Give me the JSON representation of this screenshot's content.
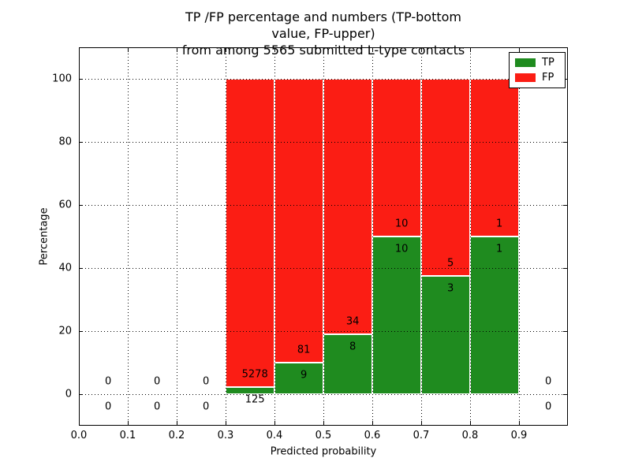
{
  "chart_data": {
    "type": "bar",
    "stacked": true,
    "title": "TP /FP percentage and numbers (TP-bottom value, FP-upper)\nfrom among 5565 submitted L-type contacts",
    "xlabel": "Predicted probability",
    "ylabel": "Percentage",
    "total_submitted_contacts": 5565,
    "x_range": [
      0.0,
      1.0
    ],
    "y_range": [
      -10,
      110
    ],
    "x_ticks": [
      0.0,
      0.1,
      0.2,
      0.3,
      0.4,
      0.5,
      0.6,
      0.7,
      0.8,
      0.9
    ],
    "x_tick_labels": [
      "0.0",
      "0.1",
      "0.2",
      "0.3",
      "0.4",
      "0.5",
      "0.6",
      "0.7",
      "0.8",
      "0.9"
    ],
    "y_ticks": [
      0,
      20,
      40,
      60,
      80,
      100
    ],
    "y_tick_labels": [
      "0",
      "20",
      "40",
      "60",
      "80",
      "100"
    ],
    "grid": {
      "enabled": true,
      "style": "dotted",
      "color": "#000000"
    },
    "colors": {
      "tp": "#1f8b1f",
      "fp": "#fb1d14"
    },
    "legend": {
      "position": "upper right",
      "entries": [
        {
          "label": "TP",
          "color": "#1f8b1f"
        },
        {
          "label": "FP",
          "color": "#fb1d14"
        }
      ]
    },
    "bins": [
      {
        "x0": 0.0,
        "x1": 0.1,
        "tp": 0,
        "fp": 0,
        "tp_pct": 0,
        "fp_pct": 0
      },
      {
        "x0": 0.1,
        "x1": 0.2,
        "tp": 0,
        "fp": 0,
        "tp_pct": 0,
        "fp_pct": 0
      },
      {
        "x0": 0.2,
        "x1": 0.3,
        "tp": 0,
        "fp": 0,
        "tp_pct": 0,
        "fp_pct": 0
      },
      {
        "x0": 0.3,
        "x1": 0.4,
        "tp": 125,
        "fp": 5278,
        "tp_pct": 2.31,
        "fp_pct": 97.69
      },
      {
        "x0": 0.4,
        "x1": 0.5,
        "tp": 9,
        "fp": 81,
        "tp_pct": 10.0,
        "fp_pct": 90.0
      },
      {
        "x0": 0.5,
        "x1": 0.6,
        "tp": 8,
        "fp": 34,
        "tp_pct": 19.05,
        "fp_pct": 80.95
      },
      {
        "x0": 0.6,
        "x1": 0.7,
        "tp": 10,
        "fp": 10,
        "tp_pct": 50.0,
        "fp_pct": 50.0
      },
      {
        "x0": 0.7,
        "x1": 0.8,
        "tp": 3,
        "fp": 5,
        "tp_pct": 37.5,
        "fp_pct": 62.5
      },
      {
        "x0": 0.8,
        "x1": 0.9,
        "tp": 1,
        "fp": 1,
        "tp_pct": 50.0,
        "fp_pct": 50.0
      },
      {
        "x0": 0.9,
        "x1": 1.0,
        "tp": 0,
        "fp": 0,
        "tp_pct": 0,
        "fp_pct": 0
      }
    ]
  }
}
